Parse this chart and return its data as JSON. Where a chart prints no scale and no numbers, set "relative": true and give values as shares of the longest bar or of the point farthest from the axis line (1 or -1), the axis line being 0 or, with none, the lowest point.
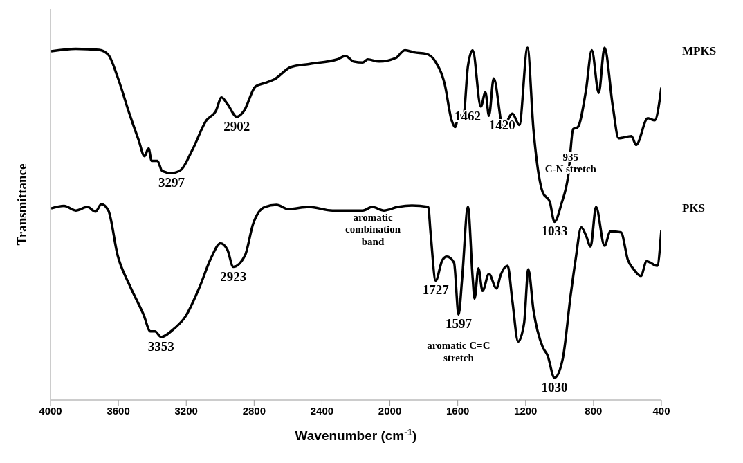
{
  "chart_data": {
    "type": "line",
    "xlabel": "Wavenumber (cm$^{-1}$)",
    "ylabel": "Transmittance",
    "relative": true,
    "xlim": [
      4000,
      400
    ],
    "xticks": [
      4000,
      3600,
      3200,
      2800,
      2400,
      2000,
      1600,
      1200,
      800,
      400
    ],
    "grid": false,
    "legend": false,
    "marker": "none",
    "line_style": "solid",
    "series": [
      {
        "name": "MPKS",
        "color": "#000000",
        "x": [
          3996,
          3851,
          3714,
          3659,
          3604,
          3535,
          3480,
          3446,
          3422,
          3404,
          3370,
          3342,
          3287,
          3232,
          3163,
          3081,
          3026,
          2992,
          2957,
          2902,
          2861,
          2792,
          2737,
          2682,
          2585,
          2476,
          2310,
          2262,
          2214,
          2159,
          2131,
          2063,
          1966,
          1911,
          1856,
          1787,
          1732,
          1677,
          1636,
          1615,
          1594,
          1567,
          1540,
          1512,
          1464,
          1437,
          1416,
          1388,
          1333,
          1278,
          1237,
          1189,
          1154,
          1099,
          1058,
          1030,
          989,
          948,
          920,
          892,
          845,
          810,
          769,
          735,
          686,
          652,
          576,
          549,
          480,
          439,
          400
        ],
        "values": [
          0.99,
          0.997,
          0.994,
          0.98,
          0.916,
          0.813,
          0.737,
          0.692,
          0.714,
          0.679,
          0.679,
          0.65,
          0.644,
          0.653,
          0.711,
          0.794,
          0.82,
          0.859,
          0.84,
          0.804,
          0.82,
          0.89,
          0.9,
          0.91,
          0.945,
          0.954,
          0.967,
          0.977,
          0.961,
          0.958,
          0.967,
          0.961,
          0.971,
          0.993,
          0.987,
          0.983,
          0.961,
          0.897,
          0.794,
          0.775,
          0.81,
          0.804,
          0.948,
          0.993,
          0.833,
          0.874,
          0.807,
          0.913,
          0.775,
          0.813,
          0.781,
          1.0,
          0.769,
          0.589,
          0.563,
          0.506,
          0.557,
          0.64,
          0.769,
          0.775,
          0.877,
          0.993,
          0.872,
          1.0,
          0.833,
          0.743,
          0.749,
          0.724,
          0.8,
          0.794,
          0.887
        ]
      },
      {
        "name": "PKS",
        "color": "#000000",
        "x": [
          3996,
          3920,
          3851,
          3782,
          3735,
          3700,
          3659,
          3604,
          3535,
          3452,
          3411,
          3384,
          3349,
          3273,
          3205,
          3122,
          3053,
          2998,
          2957,
          2923,
          2854,
          2806,
          2737,
          2668,
          2599,
          2476,
          2338,
          2159,
          2104,
          2035,
          1953,
          1870,
          1774,
          1760,
          1730,
          1691,
          1664,
          1622,
          1595,
          1574,
          1540,
          1512,
          1501,
          1478,
          1454,
          1416,
          1372,
          1347,
          1306,
          1278,
          1244,
          1209,
          1184,
          1154,
          1099,
          1071,
          1030,
          982,
          934,
          906,
          872,
          845,
          817,
          785,
          735,
          700,
          638,
          597,
          563,
          521,
          487,
          425,
          400
        ],
        "values": [
          0.544,
          0.551,
          0.538,
          0.548,
          0.535,
          0.556,
          0.538,
          0.41,
          0.327,
          0.243,
          0.195,
          0.195,
          0.179,
          0.202,
          0.237,
          0.32,
          0.404,
          0.445,
          0.426,
          0.378,
          0.41,
          0.5,
          0.548,
          0.554,
          0.542,
          0.548,
          0.538,
          0.538,
          0.548,
          0.538,
          0.548,
          0.552,
          0.548,
          0.474,
          0.339,
          0.397,
          0.407,
          0.39,
          0.243,
          0.346,
          0.548,
          0.346,
          0.288,
          0.374,
          0.31,
          0.358,
          0.317,
          0.355,
          0.381,
          0.281,
          0.166,
          0.218,
          0.371,
          0.256,
          0.15,
          0.127,
          0.063,
          0.115,
          0.3,
          0.397,
          0.49,
          0.468,
          0.436,
          0.548,
          0.438,
          0.479,
          0.476,
          0.397,
          0.371,
          0.352,
          0.394,
          0.381,
          0.483
        ]
      }
    ],
    "annotations": [
      {
        "text": "3297",
        "x": 3287,
        "y": 0.644
      },
      {
        "text": "2902",
        "x": 2902,
        "y": 0.804
      },
      {
        "text": "1462",
        "x": 1464,
        "y": 0.833
      },
      {
        "text": "1420",
        "x": 1416,
        "y": 0.807
      },
      {
        "text": "935\nC-N stretch",
        "x": 935,
        "y": 0.72
      },
      {
        "text": "1033",
        "x": 1030,
        "y": 0.506
      },
      {
        "text": "3353",
        "x": 3349,
        "y": 0.179
      },
      {
        "text": "2923",
        "x": 2923,
        "y": 0.378
      },
      {
        "text": "aromatic\ncombination\nband",
        "x": 2100,
        "y": 0.548
      },
      {
        "text": "1727",
        "x": 1730,
        "y": 0.339
      },
      {
        "text": "1597",
        "x": 1595,
        "y": 0.243
      },
      {
        "text": "aromatic C=C\nstretch",
        "x": 1595,
        "y": 0.243
      },
      {
        "text": "1030",
        "x": 1030,
        "y": 0.063
      }
    ]
  }
}
